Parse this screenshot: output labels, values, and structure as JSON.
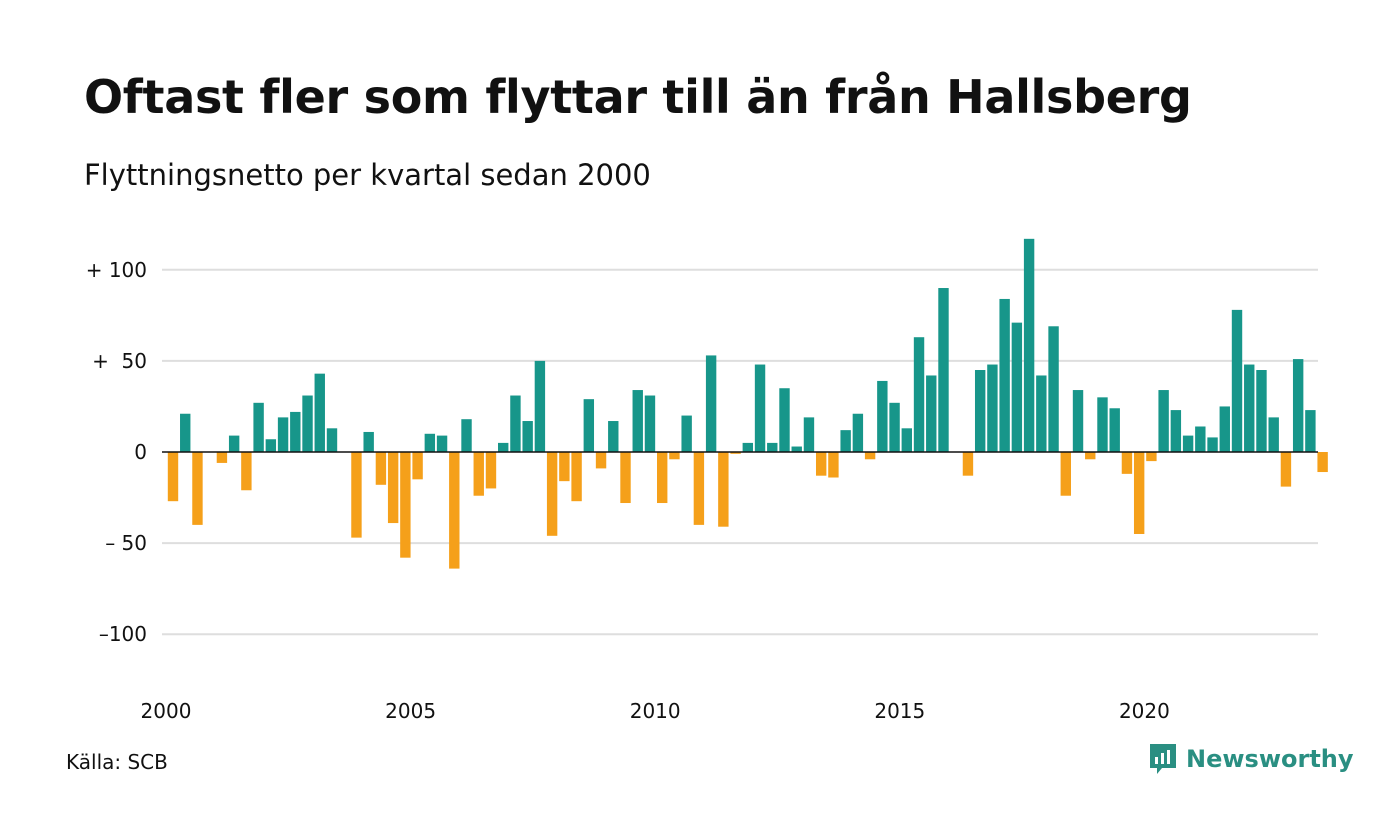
{
  "title": "Oftast fler som flyttar till än från Hallsberg",
  "subtitle": "Flyttningsnetto per kvartal sedan 2000",
  "source": "Källa: SCB",
  "brand": {
    "name": "Newsworthy",
    "icon": "newsworthy-logo-icon",
    "color": "#2a8f82"
  },
  "colors": {
    "positive": "#17968a",
    "negative": "#f5a01a",
    "grid": "#dedede",
    "zero": "#111111"
  },
  "chart_data": {
    "type": "bar",
    "title": "Oftast fler som flyttar till än från Hallsberg",
    "subtitle": "Flyttningsnetto per kvartal sedan 2000",
    "xlabel": "",
    "ylabel": "",
    "ylim": [
      -125,
      125
    ],
    "yticks": [
      100,
      50,
      0,
      -50,
      -100
    ],
    "ytick_labels": [
      "+ 100",
      "+  50",
      "0",
      "– 50",
      "–100"
    ],
    "xticks": [
      "2000",
      "2005",
      "2010",
      "2015",
      "2020"
    ],
    "grid": true,
    "legend": "none",
    "start": "2000 Q1",
    "categories": [
      "2000 Q1",
      "2000 Q2",
      "2000 Q3",
      "2000 Q4",
      "2001 Q1",
      "2001 Q2",
      "2001 Q3",
      "2001 Q4",
      "2002 Q1",
      "2002 Q2",
      "2002 Q3",
      "2002 Q4",
      "2003 Q1",
      "2003 Q2",
      "2003 Q3",
      "2003 Q4",
      "2004 Q1",
      "2004 Q2",
      "2004 Q3",
      "2004 Q4",
      "2005 Q1",
      "2005 Q2",
      "2005 Q3",
      "2005 Q4",
      "2006 Q1",
      "2006 Q2",
      "2006 Q3",
      "2006 Q4",
      "2007 Q1",
      "2007 Q2",
      "2007 Q3",
      "2007 Q4",
      "2008 Q1",
      "2008 Q2",
      "2008 Q3",
      "2008 Q4",
      "2009 Q1",
      "2009 Q2",
      "2009 Q3",
      "2009 Q4",
      "2010 Q1",
      "2010 Q2",
      "2010 Q3",
      "2010 Q4",
      "2011 Q1",
      "2011 Q2",
      "2011 Q3",
      "2011 Q4",
      "2012 Q1",
      "2012 Q2",
      "2012 Q3",
      "2012 Q4",
      "2013 Q1",
      "2013 Q2",
      "2013 Q3",
      "2013 Q4",
      "2014 Q1",
      "2014 Q2",
      "2014 Q3",
      "2014 Q4",
      "2015 Q1",
      "2015 Q2",
      "2015 Q3",
      "2015 Q4",
      "2016 Q1",
      "2016 Q2",
      "2016 Q3",
      "2016 Q4",
      "2017 Q1",
      "2017 Q2",
      "2017 Q3",
      "2017 Q4",
      "2018 Q1",
      "2018 Q2",
      "2018 Q3",
      "2018 Q4",
      "2019 Q1",
      "2019 Q2",
      "2019 Q3",
      "2019 Q4",
      "2020 Q1",
      "2020 Q2",
      "2020 Q3",
      "2020 Q4",
      "2021 Q1",
      "2021 Q2",
      "2021 Q3",
      "2021 Q4",
      "2022 Q1",
      "2022 Q2",
      "2022 Q3",
      "2022 Q4",
      "2023 Q1",
      "2023 Q2",
      "2023 Q3",
      "2023 Q4"
    ],
    "values": [
      -27,
      21,
      -40,
      0,
      -6,
      9,
      -21,
      27,
      7,
      19,
      22,
      31,
      43,
      13,
      0,
      -47,
      11,
      -18,
      -39,
      -58,
      -15,
      10,
      9,
      -64,
      18,
      -24,
      -20,
      5,
      31,
      17,
      50,
      -46,
      -16,
      -27,
      29,
      -9,
      17,
      -28,
      34,
      31,
      -28,
      -4,
      20,
      -40,
      53,
      -41,
      -1,
      5,
      48,
      5,
      35,
      3,
      19,
      -13,
      -14,
      12,
      21,
      -4,
      39,
      27,
      13,
      63,
      42,
      90,
      0,
      -13,
      45,
      48,
      84,
      71,
      117,
      42,
      69,
      -24,
      34,
      -4,
      30,
      24,
      -12,
      -45,
      -5,
      34,
      23,
      9,
      14,
      8,
      25,
      78,
      48,
      45,
      19,
      -19,
      51,
      23,
      -11,
      0
    ]
  }
}
